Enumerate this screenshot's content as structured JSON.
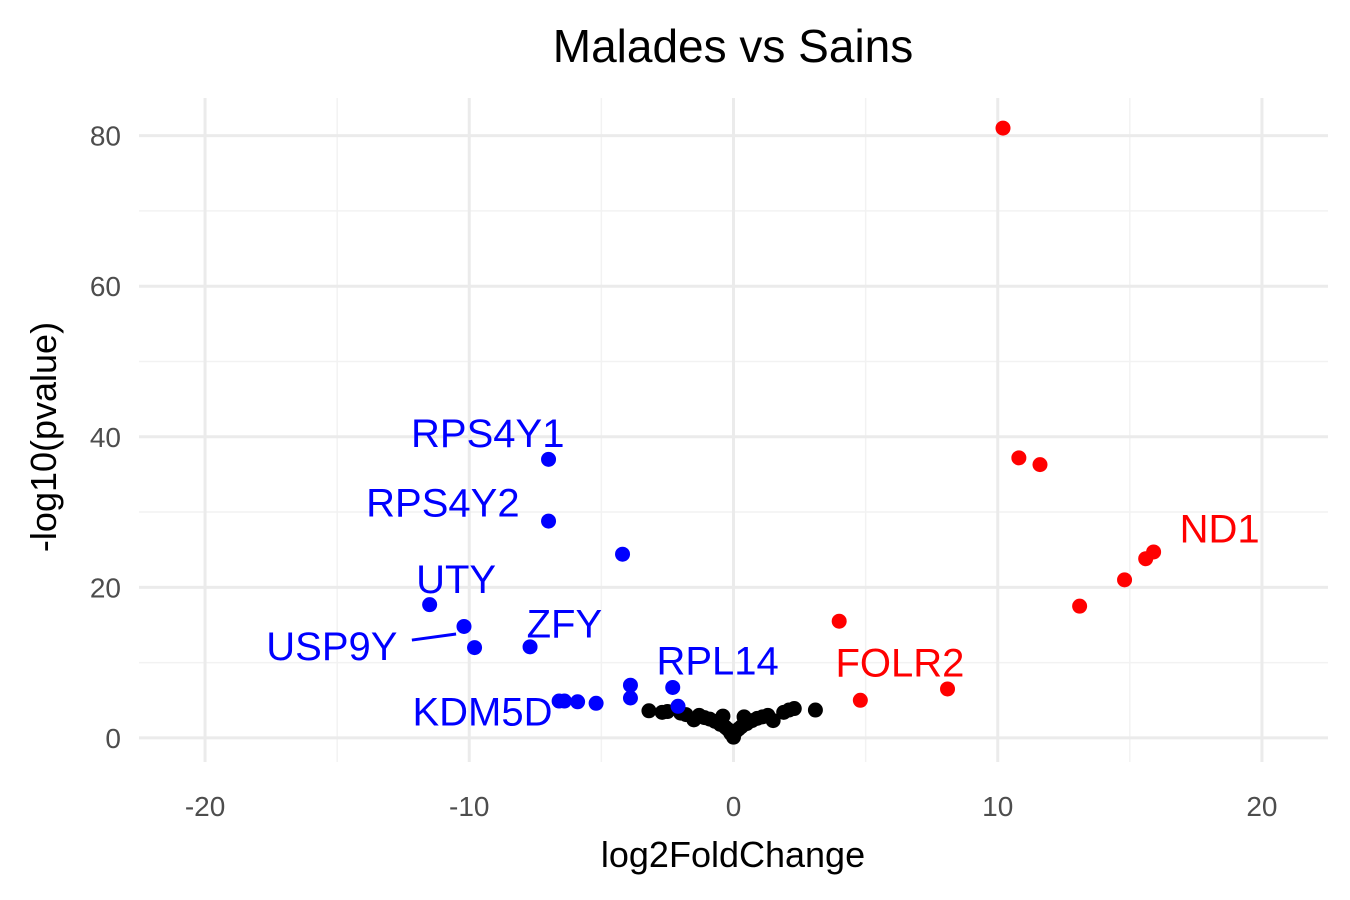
{
  "chart_data": {
    "type": "scatter",
    "title": "Malades vs Sains",
    "xlabel": "log2FoldChange",
    "ylabel": "-log10(pvalue)",
    "xlim": [
      -22.5,
      22.5
    ],
    "ylim": [
      -3.2,
      85
    ],
    "x_ticks": [
      -20,
      -10,
      0,
      10,
      20
    ],
    "x_tick_labels": [
      "-20",
      "-10",
      "0",
      "10",
      "20"
    ],
    "y_ticks": [
      0,
      20,
      40,
      60,
      80
    ],
    "y_tick_labels": [
      "0",
      "20",
      "40",
      "60",
      "80"
    ],
    "grid": true,
    "colors": {
      "up": "#ff0000",
      "down": "#0000ff",
      "ns": "#000000"
    },
    "series": [
      {
        "group": "up",
        "points": [
          {
            "x": 10.2,
            "y": 81.0
          },
          {
            "x": 10.8,
            "y": 37.2
          },
          {
            "x": 11.6,
            "y": 36.3
          },
          {
            "x": 15.9,
            "y": 24.7
          },
          {
            "x": 15.6,
            "y": 23.8
          },
          {
            "x": 14.8,
            "y": 21.0
          },
          {
            "x": 13.1,
            "y": 17.5
          },
          {
            "x": 4.0,
            "y": 15.5
          },
          {
            "x": 8.1,
            "y": 6.5
          },
          {
            "x": 4.8,
            "y": 5.0
          }
        ]
      },
      {
        "group": "down",
        "points": [
          {
            "x": -7.0,
            "y": 37.0
          },
          {
            "x": -7.0,
            "y": 28.8
          },
          {
            "x": -4.2,
            "y": 24.4
          },
          {
            "x": -11.5,
            "y": 17.7
          },
          {
            "x": -10.2,
            "y": 14.8
          },
          {
            "x": -9.8,
            "y": 12.0
          },
          {
            "x": -7.7,
            "y": 12.1
          },
          {
            "x": -3.9,
            "y": 7.0
          },
          {
            "x": -3.9,
            "y": 5.3
          },
          {
            "x": -2.3,
            "y": 6.7
          },
          {
            "x": -2.1,
            "y": 4.2
          },
          {
            "x": -6.6,
            "y": 4.9
          },
          {
            "x": -6.4,
            "y": 4.9
          },
          {
            "x": -5.9,
            "y": 4.8
          },
          {
            "x": -5.2,
            "y": 4.6
          }
        ]
      },
      {
        "group": "ns",
        "points": [
          {
            "x": -3.2,
            "y": 3.6
          },
          {
            "x": -2.7,
            "y": 3.4
          },
          {
            "x": -2.5,
            "y": 3.5
          },
          {
            "x": -2.0,
            "y": 3.3
          },
          {
            "x": -1.8,
            "y": 3.1
          },
          {
            "x": -1.3,
            "y": 3.0
          },
          {
            "x": -1.1,
            "y": 2.7
          },
          {
            "x": -0.9,
            "y": 2.5
          },
          {
            "x": -0.7,
            "y": 2.2
          },
          {
            "x": -0.5,
            "y": 1.8
          },
          {
            "x": -0.3,
            "y": 1.4
          },
          {
            "x": -0.1,
            "y": 0.6
          },
          {
            "x": 0.0,
            "y": 0.1
          },
          {
            "x": 0.1,
            "y": 0.9
          },
          {
            "x": 0.3,
            "y": 1.5
          },
          {
            "x": 0.5,
            "y": 1.9
          },
          {
            "x": 0.7,
            "y": 2.3
          },
          {
            "x": 0.9,
            "y": 2.6
          },
          {
            "x": 1.1,
            "y": 2.8
          },
          {
            "x": 1.3,
            "y": 3.0
          },
          {
            "x": 1.9,
            "y": 3.4
          },
          {
            "x": 2.1,
            "y": 3.7
          },
          {
            "x": 2.3,
            "y": 3.9
          },
          {
            "x": 3.1,
            "y": 3.7
          },
          {
            "x": -0.4,
            "y": 2.9
          },
          {
            "x": 0.4,
            "y": 2.8
          },
          {
            "x": -1.5,
            "y": 2.4
          },
          {
            "x": 1.5,
            "y": 2.3
          },
          {
            "x": -0.2,
            "y": 1.1
          },
          {
            "x": 0.2,
            "y": 1.2
          }
        ]
      }
    ],
    "annotations": [
      {
        "text": "RPS4Y1",
        "x": -9.3,
        "y": 40.5,
        "color": "#0000ff",
        "anchor": "middle"
      },
      {
        "text": "RPS4Y2",
        "x": -11.0,
        "y": 31.3,
        "color": "#0000ff",
        "anchor": "middle"
      },
      {
        "text": "UTY",
        "x": -10.5,
        "y": 21.1,
        "color": "#0000ff",
        "anchor": "middle"
      },
      {
        "text": "ZFY",
        "x": -6.4,
        "y": 15.2,
        "color": "#0000ff",
        "anchor": "middle"
      },
      {
        "text": "USP9Y",
        "x": -15.2,
        "y": 12.2,
        "color": "#0000ff",
        "anchor": "middle",
        "segment_to": {
          "x": -10.5,
          "y": 13.8
        }
      },
      {
        "text": "RPL14",
        "x": -0.6,
        "y": 10.3,
        "color": "#0000ff",
        "anchor": "middle"
      },
      {
        "text": "KDM5D",
        "x": -9.5,
        "y": 3.5,
        "color": "#0000ff",
        "anchor": "middle"
      },
      {
        "text": "FOLR2",
        "x": 6.3,
        "y": 10.0,
        "color": "#ff0000",
        "anchor": "middle"
      },
      {
        "text": "ND1",
        "x": 18.4,
        "y": 27.8,
        "color": "#ff0000",
        "anchor": "middle"
      }
    ]
  }
}
